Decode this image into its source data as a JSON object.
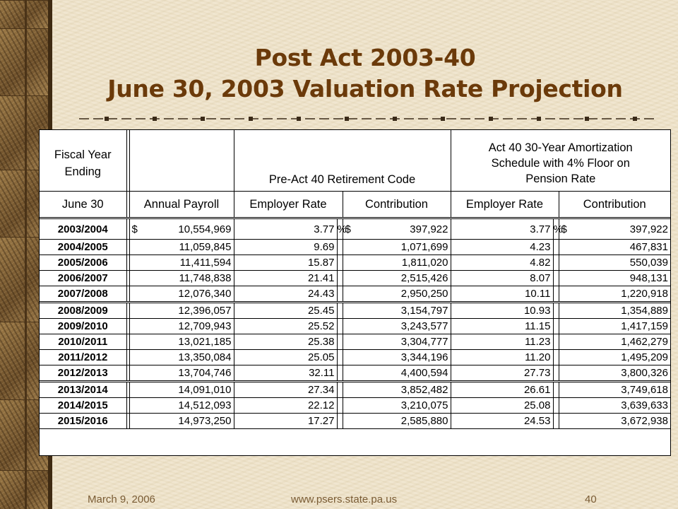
{
  "title": {
    "line1": "Post Act 2003-40",
    "line2": "June 30, 2003 Valuation Rate Projection"
  },
  "table": {
    "headers": {
      "fiscal_year": "Fiscal Year Ending",
      "june30": "June 30",
      "annual_payroll": "Annual Payroll",
      "pre_act_group": "Pre-Act 40 Retirement Code",
      "act40_group": "Act 40 30-Year Amortization Schedule with 4% Floor on Pension Rate",
      "employer_rate": "Employer Rate",
      "contribution": "Contribution"
    },
    "currency_symbol": "$",
    "percent_symbol": "%",
    "rows": [
      {
        "year": "2003/2004",
        "payroll": "10,554,969",
        "pre_rate": "3.77",
        "pre_contrib": "397,922",
        "act_rate": "3.77",
        "act_contrib": "397,922"
      },
      {
        "year": "2004/2005",
        "payroll": "11,059,845",
        "pre_rate": "9.69",
        "pre_contrib": "1,071,699",
        "act_rate": "4.23",
        "act_contrib": "467,831"
      },
      {
        "year": "2005/2006",
        "payroll": "11,411,594",
        "pre_rate": "15.87",
        "pre_contrib": "1,811,020",
        "act_rate": "4.82",
        "act_contrib": "550,039"
      },
      {
        "year": "2006/2007",
        "payroll": "11,748,838",
        "pre_rate": "21.41",
        "pre_contrib": "2,515,426",
        "act_rate": "8.07",
        "act_contrib": "948,131"
      },
      {
        "year": "2007/2008",
        "payroll": "12,076,340",
        "pre_rate": "24.43",
        "pre_contrib": "2,950,250",
        "act_rate": "10.11",
        "act_contrib": "1,220,918"
      },
      {
        "year": "2008/2009",
        "payroll": "12,396,057",
        "pre_rate": "25.45",
        "pre_contrib": "3,154,797",
        "act_rate": "10.93",
        "act_contrib": "1,354,889"
      },
      {
        "year": "2009/2010",
        "payroll": "12,709,943",
        "pre_rate": "25.52",
        "pre_contrib": "3,243,577",
        "act_rate": "11.15",
        "act_contrib": "1,417,159"
      },
      {
        "year": "2010/2011",
        "payroll": "13,021,185",
        "pre_rate": "25.38",
        "pre_contrib": "3,304,777",
        "act_rate": "11.23",
        "act_contrib": "1,462,279"
      },
      {
        "year": "2011/2012",
        "payroll": "13,350,084",
        "pre_rate": "25.05",
        "pre_contrib": "3,344,196",
        "act_rate": "11.20",
        "act_contrib": "1,495,209"
      },
      {
        "year": "2012/2013",
        "payroll": "13,704,746",
        "pre_rate": "32.11",
        "pre_contrib": "4,400,594",
        "act_rate": "27.73",
        "act_contrib": "3,800,326"
      },
      {
        "year": "2013/2014",
        "payroll": "14,091,010",
        "pre_rate": "27.34",
        "pre_contrib": "3,852,482",
        "act_rate": "26.61",
        "act_contrib": "3,749,618"
      },
      {
        "year": "2014/2015",
        "payroll": "14,512,093",
        "pre_rate": "22.12",
        "pre_contrib": "3,210,075",
        "act_rate": "25.08",
        "act_contrib": "3,639,633"
      },
      {
        "year": "2015/2016",
        "payroll": "14,973,250",
        "pre_rate": "17.27",
        "pre_contrib": "2,585,880",
        "act_rate": "24.53",
        "act_contrib": "3,672,938"
      }
    ]
  },
  "footer": {
    "date": "March 9, 2006",
    "url": "www.psers.state.pa.us",
    "page": "40"
  },
  "colors": {
    "title": "#6b3a0a",
    "footer": "#7a5c35",
    "background": "#efe4cb"
  }
}
